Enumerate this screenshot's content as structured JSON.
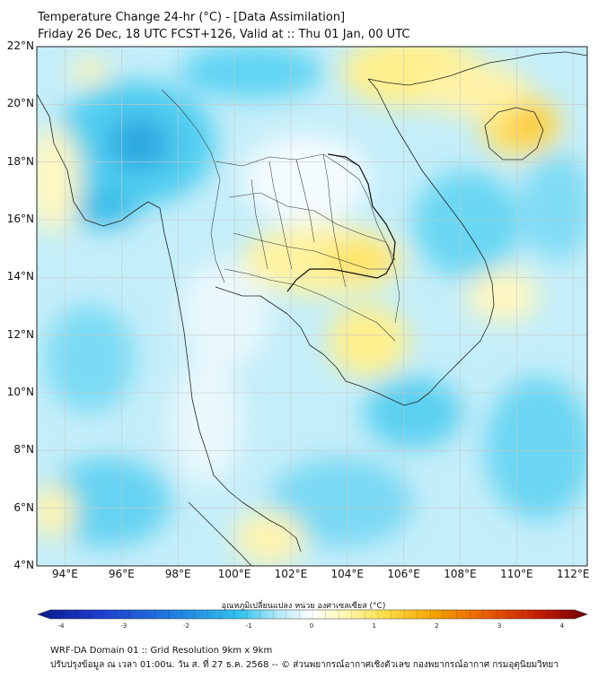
{
  "header": {
    "title": "Temperature Change 24-hr (°C) - [Data Assimilation]",
    "subtitle": "Friday 26 Dec, 18 UTC FCST+126, Valid at :: Thu 01 Jan, 00 UTC"
  },
  "map": {
    "lat_labels": [
      "22°N",
      "20°N",
      "18°N",
      "16°N",
      "14°N",
      "12°N",
      "10°N",
      "8°N",
      "6°N",
      "4°N"
    ],
    "lon_labels": [
      "94°E",
      "96°E",
      "98°E",
      "100°E",
      "102°E",
      "104°E",
      "106°E",
      "108°E",
      "110°E",
      "112°E"
    ],
    "lat_range": [
      4,
      22
    ],
    "lon_range": [
      93,
      112.5
    ],
    "colors": {
      "cold": "#1fa8d8",
      "cool": "#7fdcf5",
      "neutral": "#ffffff",
      "warm": "#fff59a",
      "hot": "#f5b800",
      "border": "#222222",
      "grid": "#c8c8c8"
    }
  },
  "colorbar": {
    "label": "อุณหภูมิเปลี่ยนแปลง หน่วย องศาเซลเซียส (°C)",
    "ticks": [
      "-4",
      "-3",
      "-2",
      "-1",
      "0",
      "1",
      "2",
      "3",
      "4"
    ],
    "min": -4,
    "max": 4
  },
  "footer": {
    "line1": "WRF-DA Domain 01 :: Grid Resolution 9km x 9km",
    "line2": "ปรับปรุงข้อมูล ณ เวลา 01:00น. วัน ส. ที่ 27 ธ.ค. 2568 -- © ส่วนพยากรณ์อากาศเชิงตัวเลข กองพยากรณ์อากาศ กรมอุตุนิยมวิทยา"
  }
}
